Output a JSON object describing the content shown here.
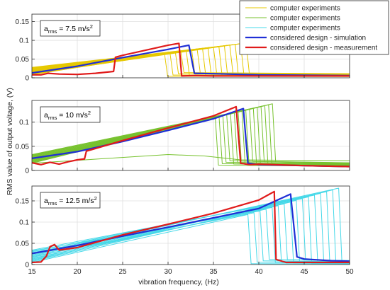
{
  "chart_data": {
    "type": "line",
    "xlabel": "vibration frequency, (Hz)",
    "ylabel": "RMS value of output voltage, (V)",
    "xlim": [
      15,
      50
    ],
    "xticks": [
      15,
      20,
      25,
      30,
      35,
      40,
      45,
      50
    ],
    "grid": true,
    "legend": {
      "placement": "top-right",
      "entries": [
        {
          "label": "computer experiments",
          "color": "#e6c800"
        },
        {
          "label": "computer experiments",
          "color": "#77c22e"
        },
        {
          "label": "computer experiments",
          "color": "#45d8e8"
        },
        {
          "label": "considered design - simulation",
          "color": "#1f2fd6"
        },
        {
          "label": "considered design - measurement",
          "color": "#e01b1b"
        }
      ]
    },
    "panels": [
      {
        "annotation": {
          "prefix": "a",
          "sub": "rms",
          "value": " = 7.5 m/s",
          "sup": "2"
        },
        "ylim": [
          0,
          0.17
        ],
        "yticks": [
          0,
          0.05,
          0.1,
          0.15
        ],
        "ytick_labels": [
          "0",
          "0.05",
          "0.1",
          "0.15"
        ],
        "cloud": {
          "color": "#e6c800",
          "start": 15,
          "count": 16,
          "base_lo": 0.008,
          "base_hi": 0.028,
          "peak_lo": 0.066,
          "peak_hi": 0.093,
          "jump_lo": 29.6,
          "jump_hi": 38.6,
          "tail_lo": 0.004,
          "tail_hi": 0.014,
          "low_count": 0
        },
        "simulation": {
          "x": [
            15,
            20,
            25,
            30,
            32.3,
            32.9,
            35,
            40,
            45,
            50
          ],
          "y": [
            0.013,
            0.031,
            0.054,
            0.076,
            0.087,
            0.012,
            0.011,
            0.008,
            0.007,
            0.006
          ]
        },
        "measurement": {
          "x": [
            15,
            16,
            16.8,
            18,
            20,
            22,
            24,
            24.2,
            25,
            30,
            31.2,
            31.5,
            33,
            35,
            40,
            45,
            50
          ],
          "y": [
            0.008,
            0.008,
            0.012,
            0.01,
            0.009,
            0.012,
            0.017,
            0.055,
            0.06,
            0.087,
            0.092,
            0.005,
            0.006,
            0.005,
            0.005,
            0.005,
            0.005
          ]
        }
      },
      {
        "annotation": {
          "prefix": "a",
          "sub": "rms",
          "value": " = 10 m/s",
          "sup": "2"
        },
        "ylim": [
          0,
          0.145
        ],
        "yticks": [
          0,
          0.05,
          0.1
        ],
        "ytick_labels": [
          "0",
          "0.05",
          "0.1"
        ],
        "cloud": {
          "color": "#77c22e",
          "start": 15,
          "count": 16,
          "base_lo": 0.015,
          "base_hi": 0.033,
          "peak_lo": 0.11,
          "peak_hi": 0.138,
          "jump_lo": 35.2,
          "jump_hi": 41.5,
          "tail_lo": 0.011,
          "tail_hi": 0.02,
          "low_count": 1
        },
        "simulation": {
          "x": [
            15,
            20,
            25,
            30,
            35,
            38.3,
            38.8,
            40,
            45,
            50
          ],
          "y": [
            0.025,
            0.039,
            0.06,
            0.083,
            0.107,
            0.128,
            0.015,
            0.012,
            0.01,
            0.008
          ]
        },
        "measurement": {
          "x": [
            15,
            16,
            17,
            18,
            19,
            20,
            20.8,
            21,
            25,
            30,
            35,
            37.5,
            38,
            39,
            40,
            45,
            50
          ],
          "y": [
            0.016,
            0.012,
            0.017,
            0.013,
            0.018,
            0.022,
            0.024,
            0.04,
            0.062,
            0.088,
            0.113,
            0.132,
            0.015,
            0.012,
            0.013,
            0.01,
            0.008
          ]
        }
      },
      {
        "annotation": {
          "prefix": "a",
          "sub": "rms",
          "value": " = 12.5 m/s",
          "sup": "2"
        },
        "ylim": [
          0,
          0.185
        ],
        "yticks": [
          0,
          0.05,
          0.1,
          0.15
        ],
        "ytick_labels": [
          "0",
          "0.05",
          "0.1",
          "0.15"
        ],
        "cloud": {
          "color": "#45d8e8",
          "start": 15,
          "count": 16,
          "base_lo": 0.005,
          "base_hi": 0.034,
          "peak_lo": 0.118,
          "peak_hi": 0.18,
          "jump_lo": 38.8,
          "jump_hi": 48.8,
          "tail_lo": 0.002,
          "tail_hi": 0.012,
          "low_count": 0
        },
        "simulation": {
          "x": [
            15,
            20,
            25,
            30,
            35,
            40,
            43.5,
            44.2,
            45,
            48,
            50
          ],
          "y": [
            0.026,
            0.045,
            0.067,
            0.088,
            0.11,
            0.132,
            0.166,
            0.018,
            0.013,
            0.009,
            0.008
          ]
        },
        "measurement": {
          "x": [
            15,
            16,
            16.6,
            17,
            17.5,
            18,
            20,
            25,
            30,
            35,
            40,
            41.7,
            41.9,
            43,
            50
          ],
          "y": [
            0.005,
            0.006,
            0.02,
            0.042,
            0.047,
            0.034,
            0.04,
            0.07,
            0.095,
            0.121,
            0.152,
            0.172,
            0.012,
            0.005,
            0.005
          ]
        }
      }
    ]
  }
}
